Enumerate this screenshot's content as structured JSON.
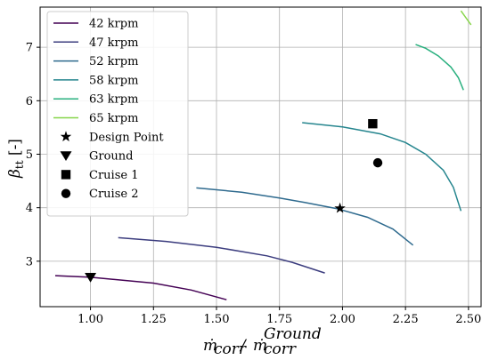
{
  "chart_data": {
    "type": "line",
    "xlabel": "ṁ_corr / ṁ_corr^Ground",
    "ylabel": "β_tt [-]",
    "xlim": [
      0.8,
      2.55
    ],
    "ylim": [
      2.15,
      7.75
    ],
    "xticks": [
      "1.00",
      "1.25",
      "1.50",
      "1.75",
      "2.00",
      "2.25",
      "2.50"
    ],
    "yticks": [
      "3",
      "4",
      "5",
      "6",
      "7"
    ],
    "grid": true,
    "legend_position": "top-left",
    "series": [
      {
        "name": "42 krpm",
        "color": "#440154",
        "points": [
          [
            0.86,
            2.73
          ],
          [
            1.0,
            2.7
          ],
          [
            1.25,
            2.59
          ],
          [
            1.4,
            2.46
          ],
          [
            1.54,
            2.28
          ]
        ]
      },
      {
        "name": "47 krpm",
        "color": "#3b3c7e",
        "points": [
          [
            1.11,
            3.44
          ],
          [
            1.3,
            3.37
          ],
          [
            1.5,
            3.26
          ],
          [
            1.7,
            3.1
          ],
          [
            1.8,
            2.98
          ],
          [
            1.93,
            2.78
          ]
        ]
      },
      {
        "name": "52 krpm",
        "color": "#2e6a8e",
        "points": [
          [
            1.42,
            4.37
          ],
          [
            1.6,
            4.29
          ],
          [
            1.75,
            4.18
          ],
          [
            1.85,
            4.1
          ],
          [
            1.98,
            3.98
          ],
          [
            2.1,
            3.82
          ],
          [
            2.2,
            3.6
          ],
          [
            2.28,
            3.3
          ]
        ]
      },
      {
        "name": "58 krpm",
        "color": "#25858e",
        "points": [
          [
            1.84,
            5.59
          ],
          [
            2.0,
            5.51
          ],
          [
            2.15,
            5.38
          ],
          [
            2.25,
            5.22
          ],
          [
            2.33,
            5.0
          ],
          [
            2.4,
            4.7
          ],
          [
            2.44,
            4.38
          ],
          [
            2.47,
            3.94
          ]
        ]
      },
      {
        "name": "63 krpm",
        "color": "#2ab07f",
        "points": [
          [
            2.29,
            7.05
          ],
          [
            2.33,
            6.98
          ],
          [
            2.38,
            6.84
          ],
          [
            2.43,
            6.63
          ],
          [
            2.46,
            6.43
          ],
          [
            2.48,
            6.2
          ]
        ]
      },
      {
        "name": "65 krpm",
        "color": "#86d549",
        "points": [
          [
            2.47,
            7.68
          ],
          [
            2.49,
            7.55
          ],
          [
            2.51,
            7.42
          ]
        ]
      }
    ],
    "markers": [
      {
        "name": "Design Point",
        "symbol": "star",
        "x": 1.99,
        "y": 3.99
      },
      {
        "name": "Ground",
        "symbol": "triangle-down",
        "x": 1.0,
        "y": 2.7
      },
      {
        "name": "Cruise 1",
        "symbol": "square",
        "x": 2.12,
        "y": 5.57
      },
      {
        "name": "Cruise 2",
        "symbol": "circle",
        "x": 2.14,
        "y": 4.84
      }
    ]
  }
}
